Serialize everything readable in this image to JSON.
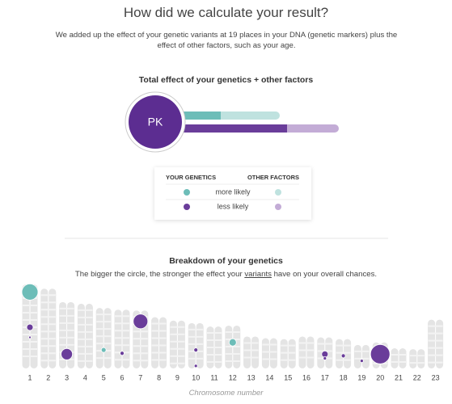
{
  "header": {
    "title": "How did we calculate your result?",
    "description": "We added up the effect of your genetic variants at 19 places in your DNA (genetic markers) plus the effect of other factors, such as your age."
  },
  "summary": {
    "title": "Total effect of your genetics + other factors",
    "avatar": "PK",
    "xlim": [
      0,
      200
    ],
    "bars": [
      {
        "genetics": 48,
        "other": 73,
        "genetics_color": "#6dbdb8",
        "other_color": "#bfe2df"
      },
      {
        "genetics": 130,
        "other": 64,
        "genetics_color": "#6a3d9a",
        "other_color": "#c3acd6"
      }
    ]
  },
  "legend": {
    "headers": [
      "YOUR GENETICS",
      "OTHER FACTORS"
    ],
    "rows": [
      "more likely",
      "less likely"
    ]
  },
  "breakdown": {
    "title": "Breakdown of your genetics",
    "subtitle": [
      "The bigger the circle, the stronger the effect your",
      "variants",
      "have on your overall chances."
    ],
    "x_label": "Chromosome number",
    "ylim": [
      0,
      100
    ],
    "chromosomes": [
      "1",
      "2",
      "3",
      "4",
      "5",
      "6",
      "7",
      "8",
      "9",
      "10",
      "11",
      "12",
      "13",
      "14",
      "15",
      "16",
      "17",
      "18",
      "19",
      "20",
      "21",
      "22",
      "23"
    ],
    "lengths": [
      100,
      95,
      79,
      77,
      72,
      70,
      69,
      61,
      57,
      54,
      50,
      51,
      38,
      36,
      35,
      38,
      37,
      35,
      28,
      31,
      24,
      23,
      58
    ],
    "variants": [
      {
        "chromosome": 0,
        "height": 91,
        "effect": 10,
        "color": "#6dbdb8"
      },
      {
        "chromosome": 0,
        "height": 37,
        "effect": 1.5,
        "color": "#6a3d9a"
      },
      {
        "chromosome": 0,
        "height": 49,
        "effect": 4,
        "color": "#6a3d9a"
      },
      {
        "chromosome": 2,
        "height": 17,
        "effect": 7,
        "color": "#6a3d9a"
      },
      {
        "chromosome": 4,
        "height": 22,
        "effect": 3,
        "color": "#6dbdb8"
      },
      {
        "chromosome": 5,
        "height": 18,
        "effect": 2.5,
        "color": "#6a3d9a"
      },
      {
        "chromosome": 6,
        "height": 56,
        "effect": 9,
        "color": "#6a3d9a"
      },
      {
        "chromosome": 9,
        "height": 3,
        "effect": 2,
        "color": "#6a3d9a"
      },
      {
        "chromosome": 9,
        "height": 22,
        "effect": 2.5,
        "color": "#6a3d9a"
      },
      {
        "chromosome": 11,
        "height": 31,
        "effect": 4.5,
        "color": "#6dbdb8"
      },
      {
        "chromosome": 16,
        "height": 17,
        "effect": 4,
        "color": "#6a3d9a"
      },
      {
        "chromosome": 16,
        "height": 12,
        "effect": 2,
        "color": "#6a3d9a"
      },
      {
        "chromosome": 17,
        "height": 15,
        "effect": 2.5,
        "color": "#6a3d9a"
      },
      {
        "chromosome": 18,
        "height": 9,
        "effect": 2,
        "color": "#6a3d9a"
      },
      {
        "chromosome": 19,
        "height": 17,
        "effect": 12,
        "color": "#6a3d9a"
      }
    ]
  }
}
